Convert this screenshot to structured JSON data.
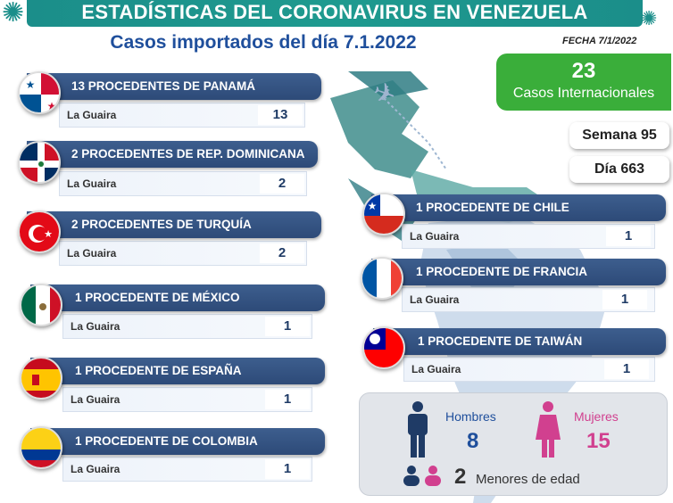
{
  "title": "ESTADÍSTICAS DEL CORONAVIRUS EN VENEZUELA",
  "subtitle": "Casos importados del día 7.1.2022",
  "date": "FECHA 7/1/2022",
  "summary": {
    "total": "23",
    "total_label": "Casos Internacionales",
    "week": "Semana 95",
    "day": "Día 663"
  },
  "left_cards": [
    {
      "title": "13 PROCEDENTES DE PANAMÁ",
      "city": "La Guaira",
      "count": "13"
    },
    {
      "title": "2 PROCEDENTES DE REP. DOMINICANA",
      "city": "La Guaira",
      "count": "2"
    },
    {
      "title": "2 PROCEDENTES DE TURQUÍA",
      "city": "La Guaira",
      "count": "2"
    },
    {
      "title": "1 PROCEDENTE DE MÉXICO",
      "city": "La Guaira",
      "count": "1"
    },
    {
      "title": "1 PROCEDENTE DE ESPAÑA",
      "city": "La Guaira",
      "count": "1"
    },
    {
      "title": "1 PROCEDENTE DE COLOMBIA",
      "city": "La Guaira",
      "count": "1"
    }
  ],
  "right_cards": [
    {
      "title": "1 PROCEDENTE DE CHILE",
      "city": "La Guaira",
      "count": "1"
    },
    {
      "title": "1 PROCEDENTE DE FRANCIA",
      "city": "La Guaira",
      "count": "1"
    },
    {
      "title": "1 PROCEDENTE DE TAIWÁN",
      "city": "La Guaira",
      "count": "1"
    }
  ],
  "gender": {
    "men_label": "Hombres",
    "men": "8",
    "women_label": "Mujeres",
    "women": "15",
    "minors": "2",
    "minors_label": "Menores de edad"
  },
  "colors": {
    "teal": "#1b8e8a",
    "navy": "#2d4a78",
    "green": "#3aae3a",
    "men": "#1f4f9c",
    "women": "#d1408f"
  }
}
